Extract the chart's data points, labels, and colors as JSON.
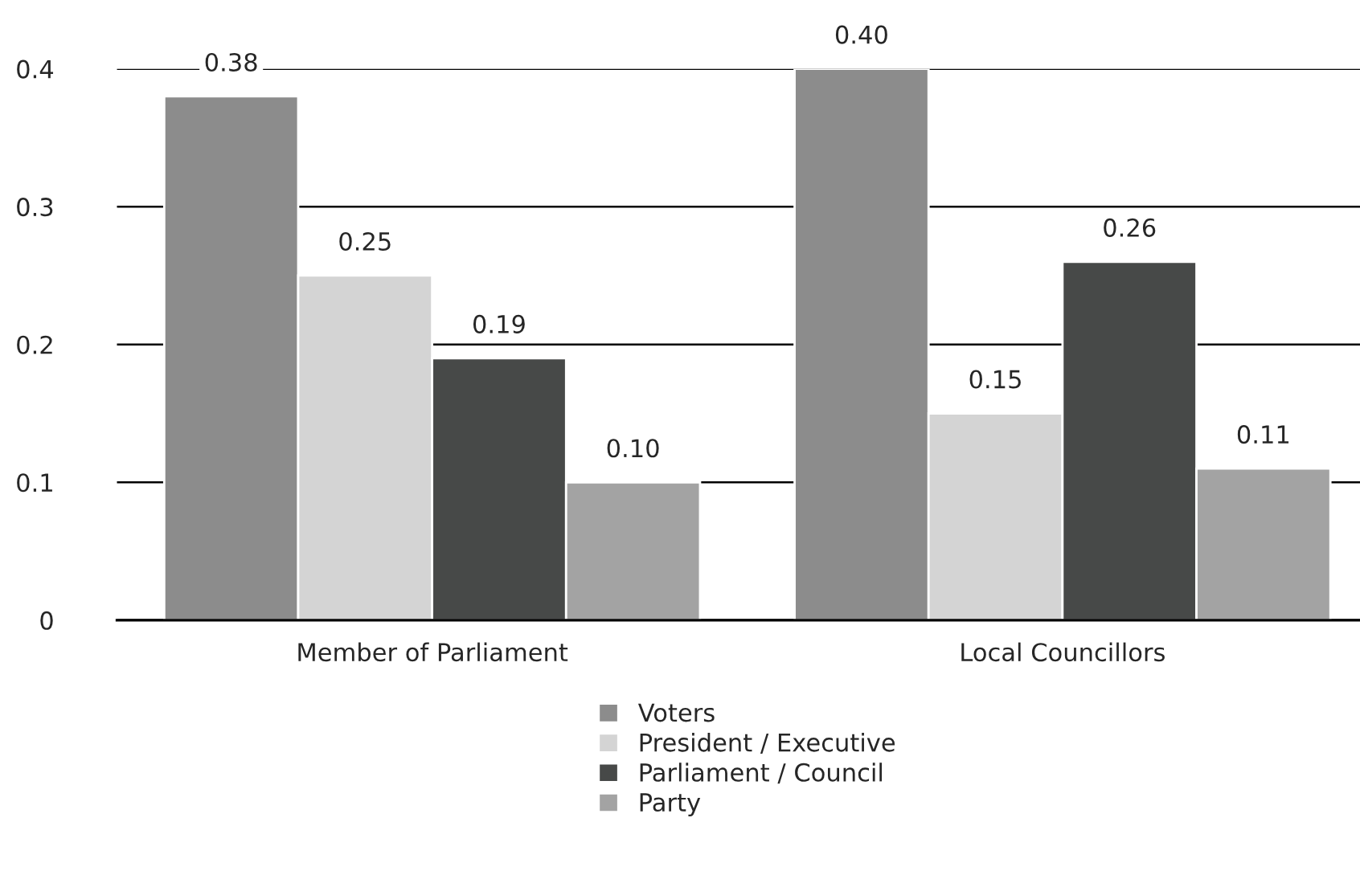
{
  "chart_data": {
    "type": "bar",
    "categories": [
      "Member of Parliament",
      "Local Councillors"
    ],
    "series": [
      {
        "name": "Voters",
        "color": "#8c8c8c",
        "values": [
          0.38,
          0.4
        ],
        "value_labels": [
          "0.38",
          "0.40"
        ]
      },
      {
        "name": "President / Executive",
        "color": "#d4d4d4",
        "values": [
          0.25,
          0.15
        ],
        "value_labels": [
          "0.25",
          "0.15"
        ]
      },
      {
        "name": "Parliament / Council",
        "color": "#474948",
        "values": [
          0.19,
          0.26
        ],
        "value_labels": [
          "0.19",
          "0.26"
        ]
      },
      {
        "name": "Party",
        "color": "#a3a3a3",
        "values": [
          0.1,
          0.11
        ],
        "value_labels": [
          "0.10",
          "0.11"
        ]
      }
    ],
    "ylim": [
      0,
      0.4
    ],
    "yticks": [
      0,
      0.1,
      0.2,
      0.3,
      0.4
    ],
    "grid": "y",
    "legend": "bottom"
  }
}
